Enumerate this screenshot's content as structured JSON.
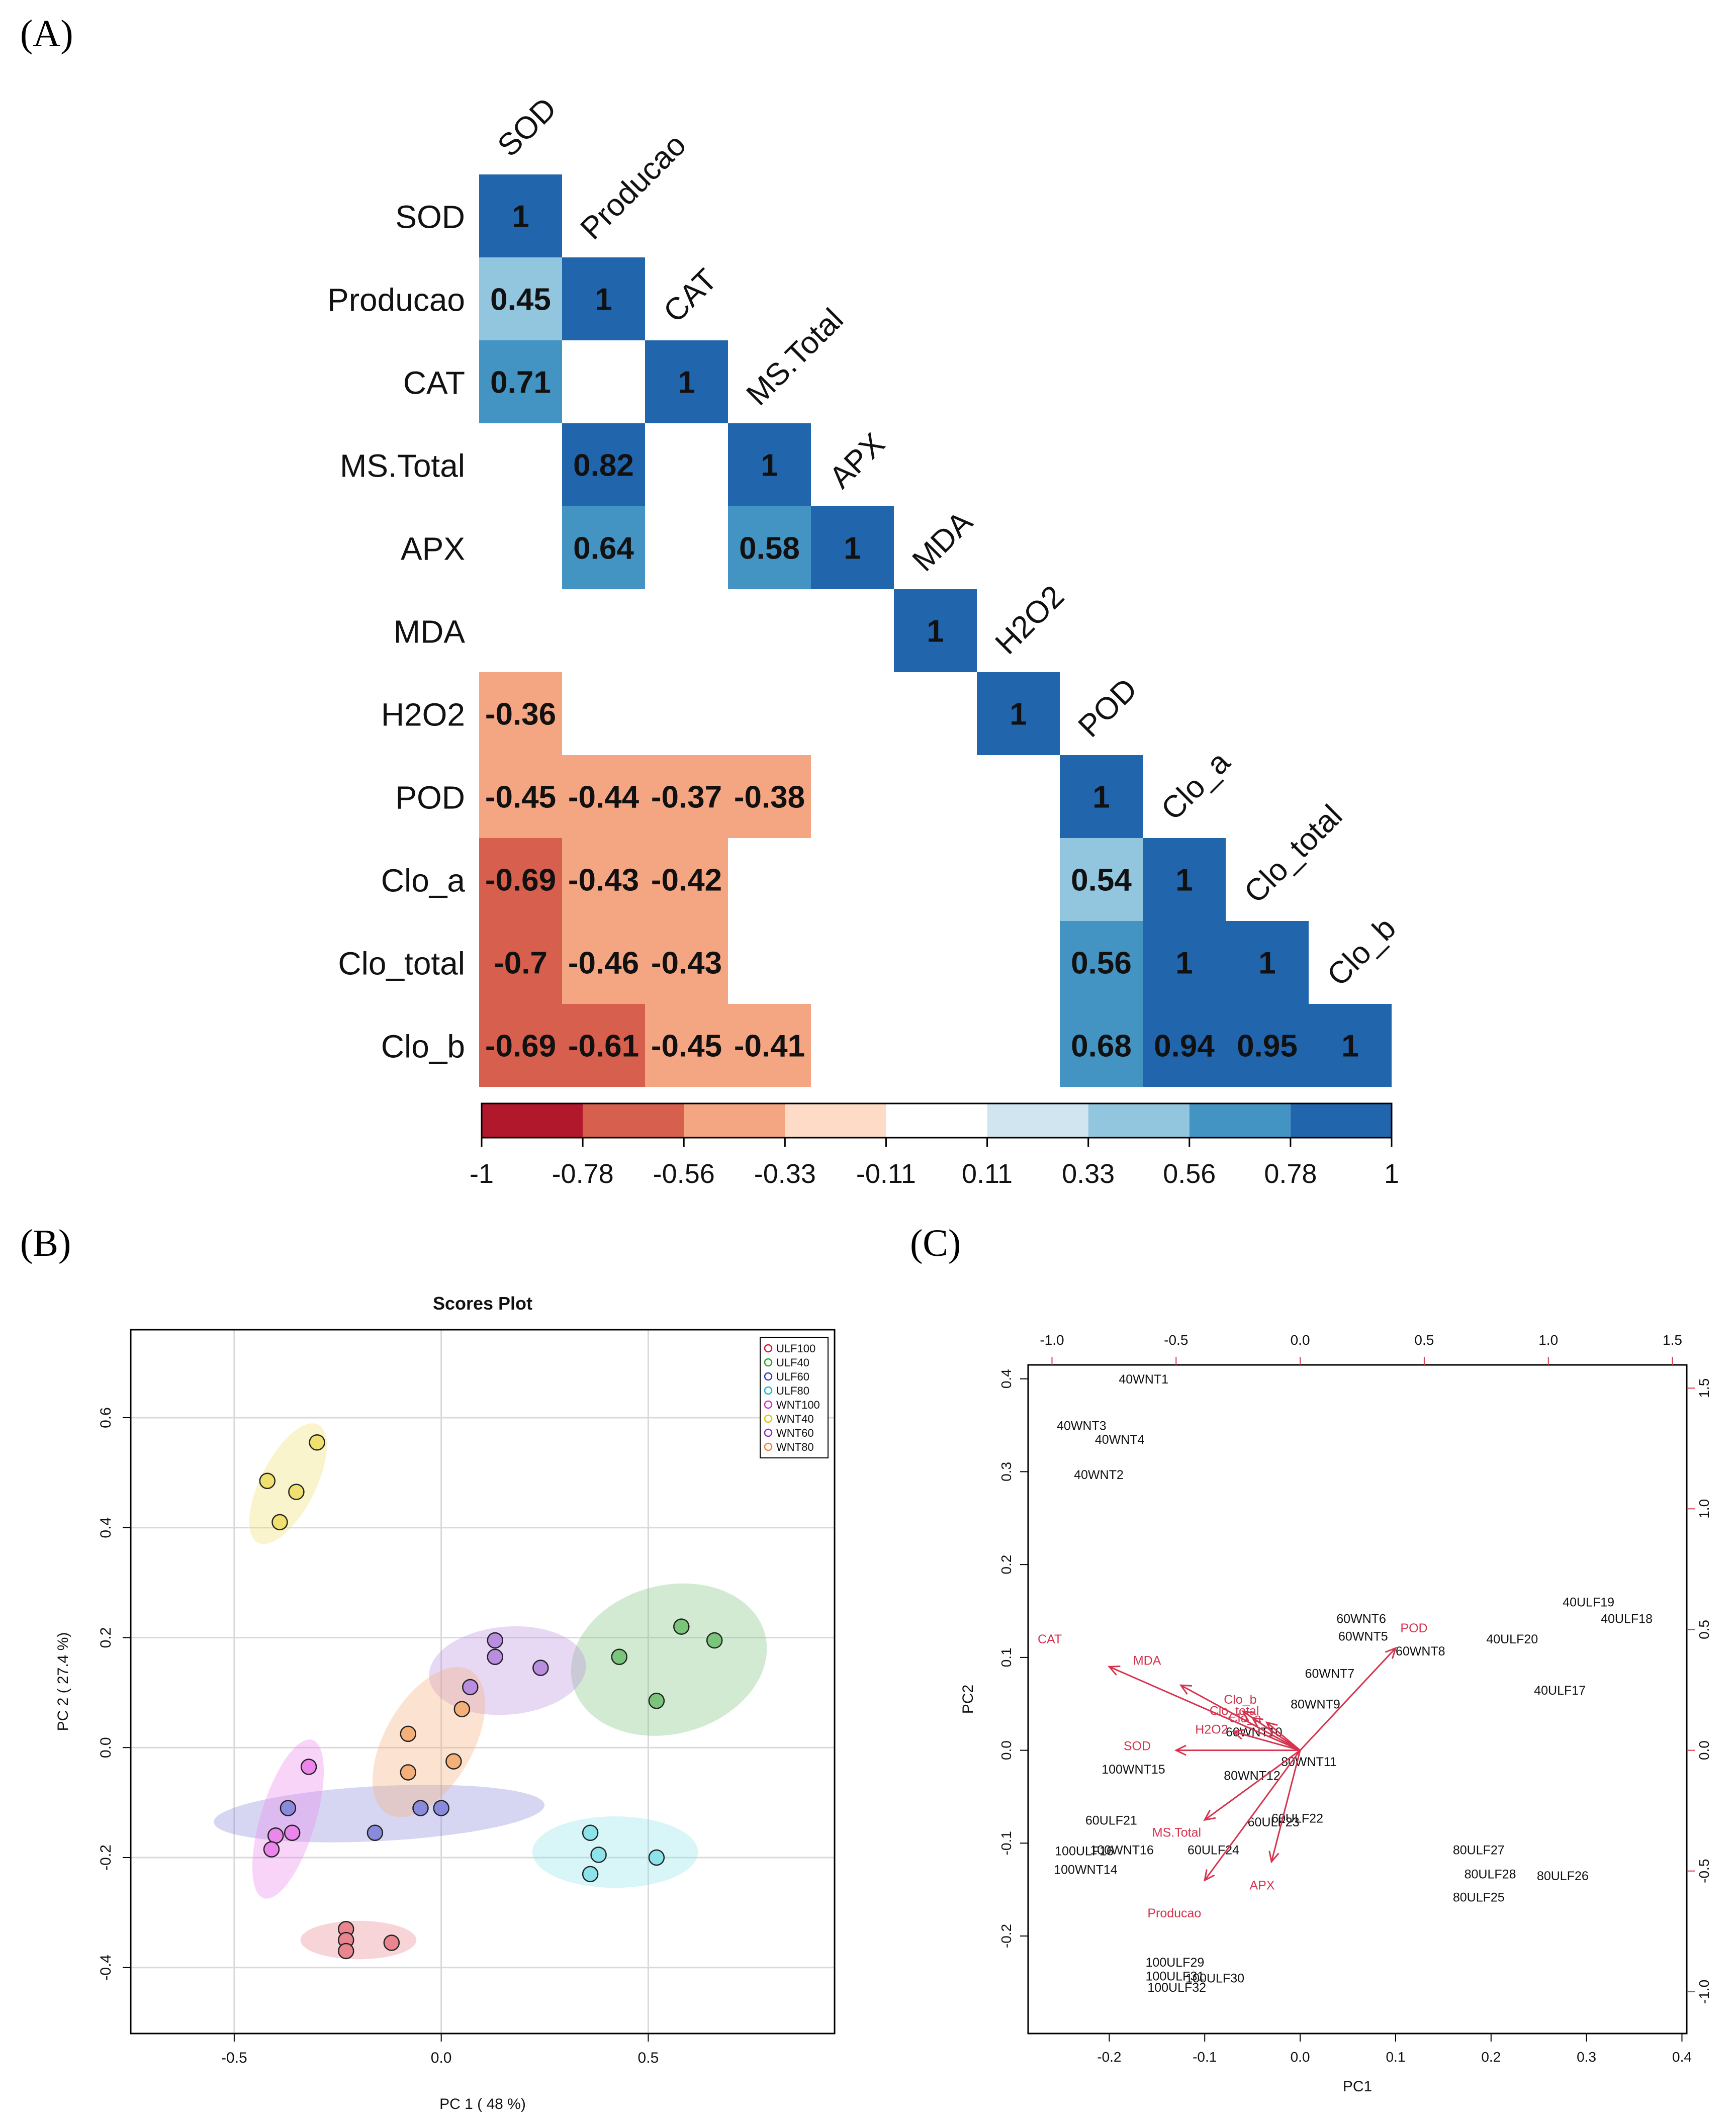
{
  "panels": {
    "a": "(A)",
    "b": "(B)",
    "c": "(C)"
  },
  "chart_data": [
    {
      "panel": "A",
      "type": "heatmap",
      "title": "",
      "variables": [
        "SOD",
        "Producao",
        "CAT",
        "MS.Total",
        "APX",
        "MDA",
        "H2O2",
        "POD",
        "Clo_a",
        "Clo_total",
        "Clo_b"
      ],
      "cells": [
        [
          0,
          0,
          "1",
          1
        ],
        [
          1,
          0,
          "0.45",
          0.45
        ],
        [
          1,
          1,
          "1",
          1
        ],
        [
          2,
          0,
          "0.71",
          0.71
        ],
        [
          2,
          2,
          "1",
          1
        ],
        [
          3,
          1,
          "0.82",
          0.82
        ],
        [
          3,
          3,
          "1",
          1
        ],
        [
          4,
          1,
          "0.64",
          0.64
        ],
        [
          4,
          3,
          "0.58",
          0.58
        ],
        [
          4,
          4,
          "1",
          1
        ],
        [
          5,
          5,
          "1",
          1
        ],
        [
          6,
          0,
          "-0.36",
          -0.36
        ],
        [
          6,
          6,
          "1",
          1
        ],
        [
          7,
          0,
          "-0.45",
          -0.45
        ],
        [
          7,
          1,
          "-0.44",
          -0.44
        ],
        [
          7,
          2,
          "-0.37",
          -0.37
        ],
        [
          7,
          3,
          "-0.38",
          -0.38
        ],
        [
          7,
          7,
          "1",
          1
        ],
        [
          8,
          0,
          "-0.69",
          -0.69
        ],
        [
          8,
          1,
          "-0.43",
          -0.43
        ],
        [
          8,
          2,
          "-0.42",
          -0.42
        ],
        [
          8,
          7,
          "0.54",
          0.54
        ],
        [
          8,
          8,
          "1",
          1
        ],
        [
          9,
          0,
          "-0.7",
          -0.7
        ],
        [
          9,
          1,
          "-0.46",
          -0.46
        ],
        [
          9,
          2,
          "-0.43",
          -0.43
        ],
        [
          9,
          7,
          "0.56",
          0.56
        ],
        [
          9,
          8,
          "1",
          1
        ],
        [
          9,
          9,
          "1",
          1
        ],
        [
          10,
          0,
          "-0.69",
          -0.69
        ],
        [
          10,
          1,
          "-0.61",
          -0.61
        ],
        [
          10,
          2,
          "-0.45",
          -0.45
        ],
        [
          10,
          3,
          "-0.41",
          -0.41
        ],
        [
          10,
          7,
          "0.68",
          0.68
        ],
        [
          10,
          8,
          "0.94",
          0.94
        ],
        [
          10,
          9,
          "0.95",
          0.95
        ],
        [
          10,
          10,
          "1",
          1
        ]
      ],
      "colorbar": {
        "ticks": [
          "-1",
          "-0.78",
          "-0.56",
          "-0.33",
          "-0.11",
          "0.11",
          "0.33",
          "0.56",
          "0.78",
          "1"
        ],
        "bin_colors": [
          "#b2182b",
          "#d6604d",
          "#f4a582",
          "#fddbc7",
          "#ffffff",
          "#d1e5f0",
          "#92c5de",
          "#4393c3",
          "#2166ac"
        ]
      }
    },
    {
      "panel": "B",
      "type": "scatter",
      "title": "Scores Plot",
      "xlabel": "PC 1 ( 48 %)",
      "ylabel": "PC 2 ( 27.4 %)",
      "xlim": [
        -0.75,
        0.95
      ],
      "ylim": [
        -0.52,
        0.76
      ],
      "xticks": [
        "-0.5",
        "0.0",
        "0.5"
      ],
      "xtick_values": [
        -0.5,
        0.0,
        0.5
      ],
      "yticks": [
        "-0.4",
        "-0.2",
        "0.0",
        "0.2",
        "0.4",
        "0.6"
      ],
      "ytick_values": [
        -0.4,
        -0.2,
        0.0,
        0.2,
        0.4,
        0.6
      ],
      "grid": true,
      "legend_position": "top-right",
      "groups": [
        {
          "name": "ULF100",
          "color": "#e8858f",
          "edge": "#dc143c",
          "points": [
            [
              -0.23,
              -0.33
            ],
            [
              -0.23,
              -0.35
            ],
            [
              -0.23,
              -0.37
            ],
            [
              -0.12,
              -0.355
            ]
          ],
          "ellipse": {
            "cx": -0.2,
            "cy": -0.35,
            "rx": 0.14,
            "ry": 0.035,
            "angle": 0
          }
        },
        {
          "name": "ULF40",
          "color": "#7bc47b",
          "edge": "#1fa81f",
          "points": [
            [
              0.43,
              0.165
            ],
            [
              0.58,
              0.22
            ],
            [
              0.66,
              0.195
            ],
            [
              0.52,
              0.085
            ]
          ],
          "ellipse": {
            "cx": 0.55,
            "cy": 0.16,
            "rx": 0.24,
            "ry": 0.135,
            "angle": 15
          }
        },
        {
          "name": "ULF60",
          "color": "#8a8adc",
          "edge": "#3a3ac8",
          "points": [
            [
              -0.37,
              -0.11
            ],
            [
              -0.16,
              -0.155
            ],
            [
              -0.05,
              -0.11
            ],
            [
              0.0,
              -0.11
            ]
          ],
          "ellipse": {
            "cx": -0.15,
            "cy": -0.12,
            "rx": 0.4,
            "ry": 0.05,
            "angle": 3
          }
        },
        {
          "name": "ULF80",
          "color": "#8ee3ea",
          "edge": "#14b8c8",
          "points": [
            [
              0.36,
              -0.155
            ],
            [
              0.38,
              -0.195
            ],
            [
              0.52,
              -0.2
            ],
            [
              0.36,
              -0.23
            ]
          ],
          "ellipse": {
            "cx": 0.42,
            "cy": -0.19,
            "rx": 0.2,
            "ry": 0.065,
            "angle": 0
          }
        },
        {
          "name": "WNT100",
          "color": "#ec86ec",
          "edge": "#d52dd5",
          "points": [
            [
              -0.32,
              -0.035
            ],
            [
              -0.36,
              -0.155
            ],
            [
              -0.4,
              -0.16
            ],
            [
              -0.41,
              -0.185
            ]
          ],
          "ellipse": {
            "cx": -0.37,
            "cy": -0.13,
            "rx": 0.2,
            "ry": 0.05,
            "angle": 73
          }
        },
        {
          "name": "WNT40",
          "color": "#f0e070",
          "edge": "#e0c800",
          "points": [
            [
              -0.42,
              0.485
            ],
            [
              -0.35,
              0.465
            ],
            [
              -0.3,
              0.555
            ],
            [
              -0.39,
              0.41
            ]
          ],
          "ellipse": {
            "cx": -0.37,
            "cy": 0.48,
            "rx": 0.16,
            "ry": 0.05,
            "angle": 63
          }
        },
        {
          "name": "WNT60",
          "color": "#b98ee0",
          "edge": "#8a2fc8",
          "points": [
            [
              0.13,
              0.195
            ],
            [
              0.13,
              0.165
            ],
            [
              0.24,
              0.145
            ],
            [
              0.07,
              0.11
            ]
          ],
          "ellipse": {
            "cx": 0.16,
            "cy": 0.14,
            "rx": 0.19,
            "ry": 0.08,
            "angle": 5
          }
        },
        {
          "name": "WNT80",
          "color": "#f5b07a",
          "edge": "#ef8534",
          "points": [
            [
              0.05,
              0.07
            ],
            [
              -0.08,
              0.025
            ],
            [
              0.03,
              -0.025
            ],
            [
              -0.08,
              -0.045
            ]
          ],
          "ellipse": {
            "cx": -0.03,
            "cy": 0.01,
            "rx": 0.2,
            "ry": 0.08,
            "angle": 60
          }
        }
      ]
    },
    {
      "panel": "C",
      "type": "scatter",
      "title": "",
      "subtype": "biplot",
      "xlabel": "PC1",
      "ylabel": "PC2",
      "xlim": [
        -0.285,
        0.405
      ],
      "ylim": [
        -0.305,
        0.415
      ],
      "xticks": [
        "-0.2",
        "-0.1",
        "0.0",
        "0.1",
        "0.2",
        "0.3",
        "0.4"
      ],
      "xtick_values": [
        -0.2,
        -0.1,
        0.0,
        0.1,
        0.2,
        0.3,
        0.4
      ],
      "yticks": [
        "-0.2",
        "-0.1",
        "0.0",
        "0.1",
        "0.2",
        "0.3",
        "0.4"
      ],
      "ytick_values": [
        -0.2,
        -0.1,
        0.0,
        0.1,
        0.2,
        0.3,
        0.4
      ],
      "top_ticks": [
        "-1.0",
        "-0.5",
        "0.0",
        "0.5",
        "1.0",
        "1.5"
      ],
      "top_tick_values": [
        -1.0,
        -0.5,
        0.0,
        0.5,
        1.0,
        1.5
      ],
      "right_ticks": [
        "-1.0",
        "-0.5",
        "0.0",
        "0.5",
        "1.0",
        "1.5"
      ],
      "right_tick_values": [
        -1.0,
        -0.5,
        0.0,
        0.5,
        1.0,
        1.5
      ],
      "loading_scale": 0.26,
      "samples": [
        {
          "label": "40WNT1",
          "x": -0.19,
          "y": 0.395
        },
        {
          "label": "40WNT3",
          "x": -0.255,
          "y": 0.345
        },
        {
          "label": "40WNT4",
          "x": -0.215,
          "y": 0.33
        },
        {
          "label": "40WNT2",
          "x": -0.237,
          "y": 0.292
        },
        {
          "label": "60WNT6",
          "x": 0.038,
          "y": 0.137
        },
        {
          "label": "60WNT5",
          "x": 0.04,
          "y": 0.118
        },
        {
          "label": "60WNT8",
          "x": 0.1,
          "y": 0.102
        },
        {
          "label": "60WNT7",
          "x": 0.005,
          "y": 0.078
        },
        {
          "label": "80WNT9",
          "x": -0.01,
          "y": 0.045
        },
        {
          "label": "60WNT10",
          "x": -0.078,
          "y": 0.015
        },
        {
          "label": "80WNT11",
          "x": -0.02,
          "y": -0.017
        },
        {
          "label": "80WNT12",
          "x": -0.08,
          "y": -0.032
        },
        {
          "label": "100WNT15",
          "x": -0.208,
          "y": -0.025
        },
        {
          "label": "60ULF21",
          "x": -0.225,
          "y": -0.08
        },
        {
          "label": "60ULF22",
          "x": -0.03,
          "y": -0.078
        },
        {
          "label": "60ULF23",
          "x": -0.055,
          "y": -0.082
        },
        {
          "label": "60ULF24",
          "x": -0.118,
          "y": -0.112
        },
        {
          "label": "100WNT16",
          "x": -0.22,
          "y": -0.112
        },
        {
          "label": "100ULF16",
          "x": -0.257,
          "y": -0.113
        },
        {
          "label": "100WNT14",
          "x": -0.258,
          "y": -0.133
        },
        {
          "label": "40ULF19",
          "x": 0.275,
          "y": 0.155
        },
        {
          "label": "40ULF18",
          "x": 0.315,
          "y": 0.137
        },
        {
          "label": "40ULF20",
          "x": 0.195,
          "y": 0.115
        },
        {
          "label": "40ULF17",
          "x": 0.245,
          "y": 0.06
        },
        {
          "label": "80ULF27",
          "x": 0.16,
          "y": -0.112
        },
        {
          "label": "80ULF28",
          "x": 0.172,
          "y": -0.138
        },
        {
          "label": "80ULF26",
          "x": 0.248,
          "y": -0.14
        },
        {
          "label": "80ULF25",
          "x": 0.16,
          "y": -0.163
        },
        {
          "label": "100ULF29",
          "x": -0.162,
          "y": -0.233
        },
        {
          "label": "100ULF31",
          "x": -0.162,
          "y": -0.248
        },
        {
          "label": "100ULF30",
          "x": -0.12,
          "y": -0.25
        },
        {
          "label": "100ULF32",
          "x": -0.16,
          "y": -0.26
        }
      ],
      "loadings": [
        {
          "label": "CAT",
          "x": -0.2,
          "y": 0.09,
          "lx": -0.275,
          "ly": 0.115
        },
        {
          "label": "MDA",
          "x": -0.125,
          "y": 0.07,
          "lx": -0.175,
          "ly": 0.092
        },
        {
          "label": "POD",
          "x": 0.1,
          "y": 0.11,
          "lx": 0.105,
          "ly": 0.127
        },
        {
          "label": "Clo_b",
          "x": -0.06,
          "y": 0.042,
          "lx": -0.08,
          "ly": 0.05
        },
        {
          "label": "Clo_total",
          "x": -0.05,
          "y": 0.035,
          "lx": -0.095,
          "ly": 0.038
        },
        {
          "label": "Clo_a",
          "x": -0.035,
          "y": 0.03,
          "lx": -0.075,
          "ly": 0.03
        },
        {
          "label": "H2O2",
          "x": -0.07,
          "y": 0.02,
          "lx": -0.11,
          "ly": 0.018
        },
        {
          "label": "SOD",
          "x": -0.13,
          "y": 0.0,
          "lx": -0.185,
          "ly": 0.0
        },
        {
          "label": "MS.Total",
          "x": -0.1,
          "y": -0.075,
          "lx": -0.155,
          "ly": -0.093
        },
        {
          "label": "Producao",
          "x": -0.1,
          "y": -0.14,
          "lx": -0.16,
          "ly": -0.18
        },
        {
          "label": "APX",
          "x": -0.03,
          "y": -0.12,
          "lx": -0.053,
          "ly": -0.15
        }
      ]
    }
  ]
}
